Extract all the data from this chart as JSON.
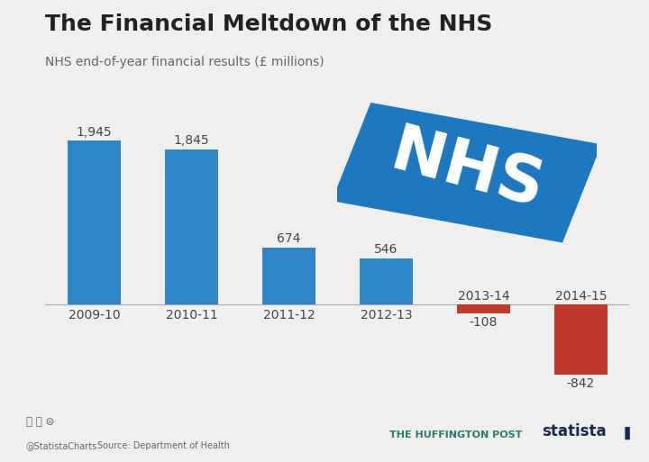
{
  "title": "The Financial Meltdown of the NHS",
  "subtitle": "NHS end-of-year financial results (£ millions)",
  "categories": [
    "2009-10",
    "2010-11",
    "2011-12",
    "2012-13",
    "2013-14",
    "2014-15"
  ],
  "values": [
    1945,
    1845,
    674,
    546,
    -108,
    -842
  ],
  "bar_colors": [
    "#2e86c8",
    "#2e86c8",
    "#2e86c8",
    "#2e86c8",
    "#c0392b",
    "#c0392b"
  ],
  "background_color": "#efefef",
  "title_fontsize": 18,
  "subtitle_fontsize": 10,
  "label_fontsize": 10,
  "tick_fontsize": 10,
  "nhs_logo_color": "#1e78bf",
  "nhs_text_color": "#ffffff",
  "footer_cc": "©ⓘ⊜",
  "footer_handle": "@StatistaCharts",
  "footer_source": "Source: Department of Health",
  "footer_center": "THE HUFFINGTON POST",
  "footer_right": "statista",
  "huffpost_color": "#2a7a6e",
  "statista_color": "#1a2a4a"
}
